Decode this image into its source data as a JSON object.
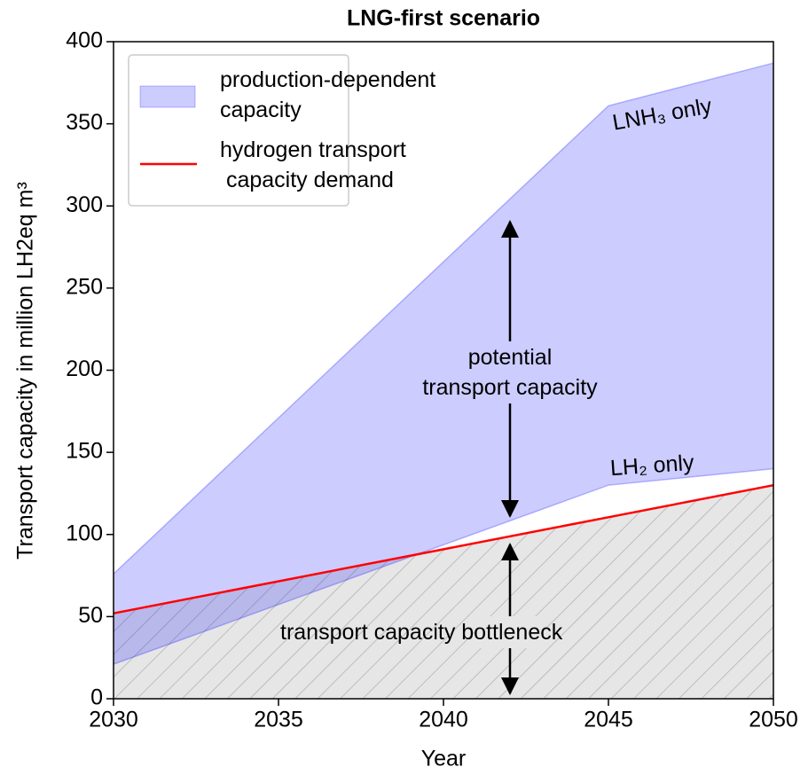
{
  "chart_data": {
    "type": "area",
    "title": "LNG-first scenario",
    "xlabel": "Year",
    "ylabel": "Transport capacity in million LH2eq m³",
    "x": [
      2030,
      2045,
      2050
    ],
    "series": [
      {
        "name": "production-dependent\ncapacity",
        "type": "band",
        "color": "#0000ff",
        "lower": [
          21,
          130,
          140
        ],
        "upper": [
          76,
          361,
          387
        ]
      },
      {
        "name": "hydrogen transport\n capacity demand",
        "type": "line",
        "color": "#ff0000",
        "values": [
          52,
          110.5,
          130
        ]
      }
    ],
    "xlim": [
      2030,
      2050
    ],
    "xticks": [
      2030,
      2035,
      2040,
      2045,
      2050
    ],
    "ylim": [
      0,
      400
    ],
    "yticks": [
      0,
      50,
      100,
      150,
      200,
      250,
      300,
      350,
      400
    ],
    "legend": "upper left",
    "annotations": [
      "potential\ntransport capacity",
      "transport capacity bottleneck",
      "LNH₃ only",
      "LH₂ only"
    ]
  }
}
